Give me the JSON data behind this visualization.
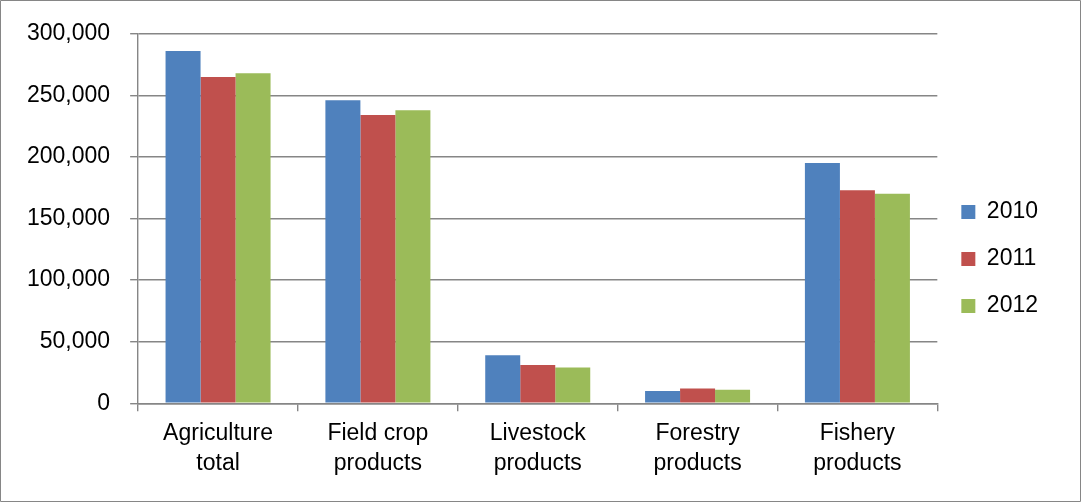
{
  "chart_data": {
    "type": "bar",
    "categories": [
      "Agriculture total",
      "Field crop products",
      "Livestock products",
      "Forestry products",
      "Fishery products"
    ],
    "series": [
      {
        "name": "2010",
        "color": "#4f81bd",
        "values": [
          286000,
          246000,
          39000,
          10000,
          195000
        ]
      },
      {
        "name": "2011",
        "color": "#c0504d",
        "values": [
          265000,
          234000,
          31000,
          12000,
          173000
        ]
      },
      {
        "name": "2012",
        "color": "#9bbb59",
        "values": [
          268000,
          238000,
          29000,
          11000,
          170000
        ]
      }
    ],
    "ylim": [
      0,
      300000
    ],
    "yticks": [
      0,
      {
        "value": 50000,
        "label": "50,000"
      },
      {
        "value": 100000,
        "label": "100,000"
      },
      {
        "value": 150000,
        "label": "150,000"
      },
      {
        "value": 200000,
        "label": "200,000"
      },
      {
        "value": 250000,
        "label": "250,000"
      },
      {
        "value": 300000,
        "label": "300,000"
      }
    ],
    "grid": "y",
    "legend": "right"
  }
}
